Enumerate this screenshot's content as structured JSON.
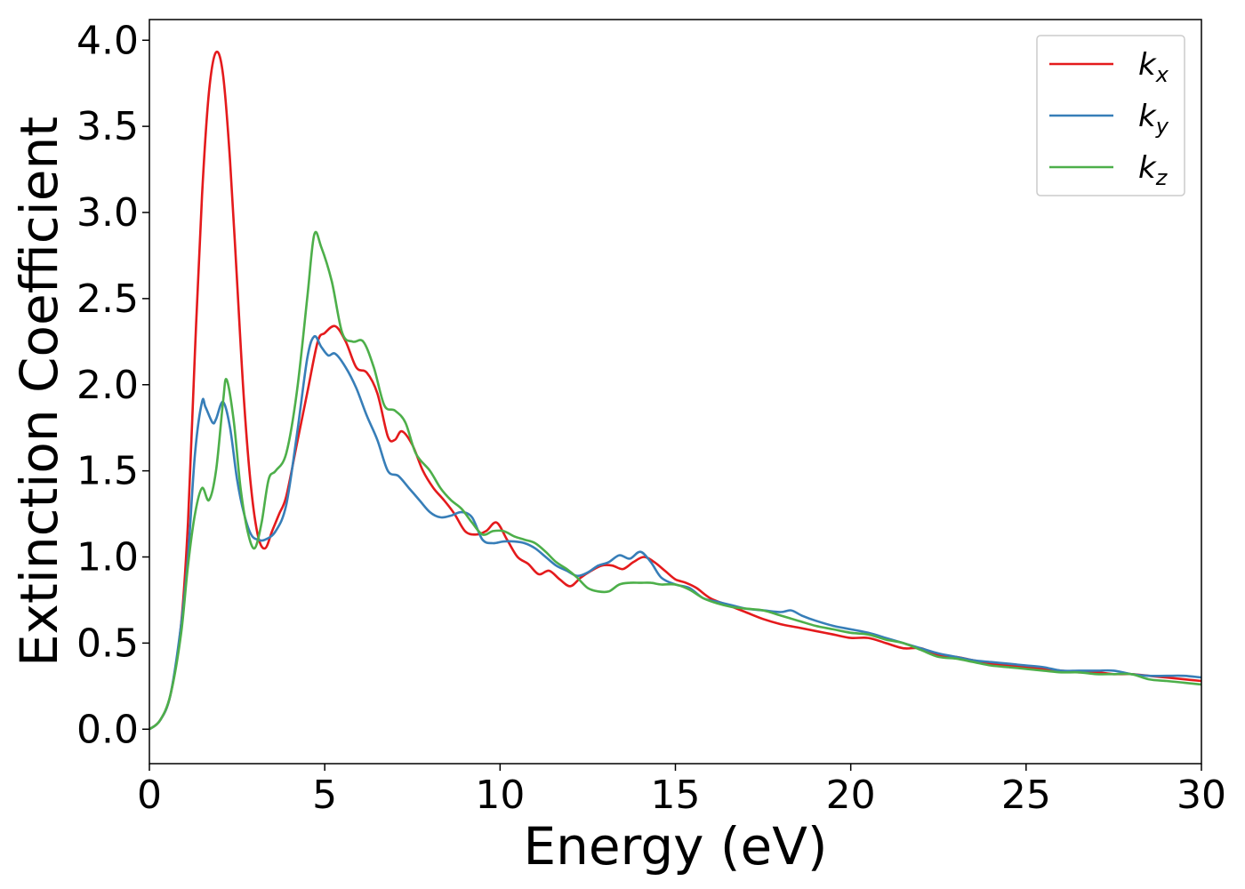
{
  "chart_data": {
    "type": "line",
    "title": "",
    "xlabel": "Energy (eV)",
    "ylabel": "Extinction Coefficient",
    "xlim": [
      0,
      30
    ],
    "ylim": [
      -0.2,
      4.12
    ],
    "x_ticks": [
      0,
      5,
      10,
      15,
      20,
      25,
      30
    ],
    "x_tick_labels": [
      "0",
      "5",
      "10",
      "15",
      "20",
      "25",
      "30"
    ],
    "y_ticks": [
      0,
      0.5,
      1,
      1.5,
      2,
      2.5,
      3,
      3.5,
      4
    ],
    "y_tick_labels": [
      "0.0",
      "0.5",
      "1.0",
      "1.5",
      "2.0",
      "2.5",
      "3.0",
      "3.5",
      "4.0"
    ],
    "grid": false,
    "legend_position": "top-right",
    "series": [
      {
        "name": "k",
        "subscript": "x",
        "color": "#e41a1c",
        "points": [
          [
            0,
            0
          ],
          [
            0.3,
            0.05
          ],
          [
            0.6,
            0.2
          ],
          [
            0.9,
            0.6
          ],
          [
            1.1,
            1.2
          ],
          [
            1.3,
            2.2
          ],
          [
            1.5,
            3.1
          ],
          [
            1.7,
            3.7
          ],
          [
            1.9,
            3.93
          ],
          [
            2.1,
            3.8
          ],
          [
            2.3,
            3.3
          ],
          [
            2.5,
            2.6
          ],
          [
            2.7,
            1.9
          ],
          [
            2.9,
            1.4
          ],
          [
            3.1,
            1.12
          ],
          [
            3.3,
            1.05
          ],
          [
            3.5,
            1.15
          ],
          [
            3.7,
            1.25
          ],
          [
            3.9,
            1.35
          ],
          [
            4.2,
            1.65
          ],
          [
            4.5,
            1.95
          ],
          [
            4.8,
            2.25
          ],
          [
            5.0,
            2.3
          ],
          [
            5.3,
            2.34
          ],
          [
            5.6,
            2.25
          ],
          [
            5.9,
            2.1
          ],
          [
            6.2,
            2.07
          ],
          [
            6.5,
            1.95
          ],
          [
            6.8,
            1.7
          ],
          [
            7.0,
            1.68
          ],
          [
            7.2,
            1.73
          ],
          [
            7.5,
            1.65
          ],
          [
            7.8,
            1.5
          ],
          [
            8.1,
            1.4
          ],
          [
            8.4,
            1.33
          ],
          [
            8.7,
            1.25
          ],
          [
            9.0,
            1.15
          ],
          [
            9.3,
            1.13
          ],
          [
            9.6,
            1.15
          ],
          [
            9.9,
            1.2
          ],
          [
            10.2,
            1.1
          ],
          [
            10.5,
            1.0
          ],
          [
            10.8,
            0.96
          ],
          [
            11.1,
            0.9
          ],
          [
            11.4,
            0.92
          ],
          [
            11.7,
            0.87
          ],
          [
            12.0,
            0.83
          ],
          [
            12.3,
            0.88
          ],
          [
            12.6,
            0.92
          ],
          [
            12.9,
            0.95
          ],
          [
            13.2,
            0.95
          ],
          [
            13.5,
            0.93
          ],
          [
            13.8,
            0.97
          ],
          [
            14.1,
            1.0
          ],
          [
            14.4,
            0.97
          ],
          [
            14.7,
            0.92
          ],
          [
            15.0,
            0.87
          ],
          [
            15.3,
            0.85
          ],
          [
            15.6,
            0.82
          ],
          [
            16.0,
            0.76
          ],
          [
            16.5,
            0.72
          ],
          [
            17.0,
            0.68
          ],
          [
            17.5,
            0.64
          ],
          [
            18.0,
            0.61
          ],
          [
            18.5,
            0.59
          ],
          [
            19.0,
            0.57
          ],
          [
            19.5,
            0.55
          ],
          [
            20.0,
            0.53
          ],
          [
            20.5,
            0.53
          ],
          [
            21.0,
            0.5
          ],
          [
            21.5,
            0.47
          ],
          [
            22.0,
            0.47
          ],
          [
            22.5,
            0.43
          ],
          [
            23.0,
            0.42
          ],
          [
            23.5,
            0.4
          ],
          [
            24.0,
            0.38
          ],
          [
            24.5,
            0.37
          ],
          [
            25.0,
            0.36
          ],
          [
            25.5,
            0.35
          ],
          [
            26.0,
            0.34
          ],
          [
            26.5,
            0.33
          ],
          [
            27.0,
            0.33
          ],
          [
            27.5,
            0.32
          ],
          [
            28.0,
            0.32
          ],
          [
            28.5,
            0.31
          ],
          [
            29.0,
            0.3
          ],
          [
            29.5,
            0.29
          ],
          [
            30.0,
            0.28
          ]
        ]
      },
      {
        "name": "k",
        "subscript": "y",
        "color": "#377eb8",
        "points": [
          [
            0,
            0
          ],
          [
            0.3,
            0.05
          ],
          [
            0.6,
            0.2
          ],
          [
            0.9,
            0.6
          ],
          [
            1.1,
            1.0
          ],
          [
            1.3,
            1.6
          ],
          [
            1.5,
            1.9
          ],
          [
            1.6,
            1.87
          ],
          [
            1.8,
            1.78
          ],
          [
            1.9,
            1.8
          ],
          [
            2.1,
            1.9
          ],
          [
            2.3,
            1.75
          ],
          [
            2.5,
            1.45
          ],
          [
            2.7,
            1.25
          ],
          [
            2.9,
            1.13
          ],
          [
            3.1,
            1.1
          ],
          [
            3.3,
            1.1
          ],
          [
            3.6,
            1.15
          ],
          [
            3.9,
            1.3
          ],
          [
            4.2,
            1.7
          ],
          [
            4.5,
            2.15
          ],
          [
            4.7,
            2.28
          ],
          [
            4.9,
            2.22
          ],
          [
            5.1,
            2.17
          ],
          [
            5.3,
            2.18
          ],
          [
            5.6,
            2.1
          ],
          [
            5.9,
            1.98
          ],
          [
            6.2,
            1.82
          ],
          [
            6.5,
            1.68
          ],
          [
            6.8,
            1.5
          ],
          [
            7.1,
            1.47
          ],
          [
            7.4,
            1.4
          ],
          [
            7.7,
            1.33
          ],
          [
            8.0,
            1.26
          ],
          [
            8.3,
            1.23
          ],
          [
            8.6,
            1.24
          ],
          [
            8.9,
            1.26
          ],
          [
            9.2,
            1.23
          ],
          [
            9.5,
            1.1
          ],
          [
            9.8,
            1.08
          ],
          [
            10.1,
            1.09
          ],
          [
            10.4,
            1.09
          ],
          [
            10.7,
            1.08
          ],
          [
            11.0,
            1.05
          ],
          [
            11.3,
            1.0
          ],
          [
            11.6,
            0.95
          ],
          [
            11.9,
            0.92
          ],
          [
            12.2,
            0.89
          ],
          [
            12.5,
            0.91
          ],
          [
            12.8,
            0.95
          ],
          [
            13.1,
            0.97
          ],
          [
            13.4,
            1.01
          ],
          [
            13.7,
            0.99
          ],
          [
            14.0,
            1.03
          ],
          [
            14.3,
            0.97
          ],
          [
            14.6,
            0.88
          ],
          [
            15.0,
            0.84
          ],
          [
            15.4,
            0.82
          ],
          [
            15.8,
            0.76
          ],
          [
            16.2,
            0.74
          ],
          [
            16.6,
            0.72
          ],
          [
            17.0,
            0.7
          ],
          [
            17.5,
            0.69
          ],
          [
            18.0,
            0.68
          ],
          [
            18.3,
            0.69
          ],
          [
            18.6,
            0.66
          ],
          [
            19.0,
            0.63
          ],
          [
            19.5,
            0.6
          ],
          [
            20.0,
            0.58
          ],
          [
            20.5,
            0.56
          ],
          [
            21.0,
            0.53
          ],
          [
            21.5,
            0.5
          ],
          [
            22.0,
            0.47
          ],
          [
            22.5,
            0.44
          ],
          [
            23.0,
            0.42
          ],
          [
            23.5,
            0.4
          ],
          [
            24.0,
            0.39
          ],
          [
            24.5,
            0.38
          ],
          [
            25.0,
            0.37
          ],
          [
            25.5,
            0.36
          ],
          [
            26.0,
            0.34
          ],
          [
            26.5,
            0.34
          ],
          [
            27.0,
            0.34
          ],
          [
            27.5,
            0.34
          ],
          [
            28.0,
            0.32
          ],
          [
            28.5,
            0.31
          ],
          [
            29.0,
            0.31
          ],
          [
            29.5,
            0.31
          ],
          [
            30.0,
            0.3
          ]
        ]
      },
      {
        "name": "k",
        "subscript": "z",
        "color": "#4daf4a",
        "points": [
          [
            0,
            0
          ],
          [
            0.3,
            0.05
          ],
          [
            0.6,
            0.2
          ],
          [
            0.9,
            0.55
          ],
          [
            1.1,
            0.95
          ],
          [
            1.3,
            1.25
          ],
          [
            1.5,
            1.4
          ],
          [
            1.7,
            1.33
          ],
          [
            1.9,
            1.5
          ],
          [
            2.1,
            1.9
          ],
          [
            2.2,
            2.03
          ],
          [
            2.4,
            1.8
          ],
          [
            2.6,
            1.4
          ],
          [
            2.8,
            1.15
          ],
          [
            3.0,
            1.05
          ],
          [
            3.2,
            1.2
          ],
          [
            3.4,
            1.45
          ],
          [
            3.6,
            1.5
          ],
          [
            3.9,
            1.6
          ],
          [
            4.2,
            1.95
          ],
          [
            4.5,
            2.5
          ],
          [
            4.7,
            2.87
          ],
          [
            4.9,
            2.8
          ],
          [
            5.2,
            2.6
          ],
          [
            5.5,
            2.3
          ],
          [
            5.8,
            2.25
          ],
          [
            6.1,
            2.25
          ],
          [
            6.4,
            2.1
          ],
          [
            6.7,
            1.88
          ],
          [
            7.0,
            1.85
          ],
          [
            7.3,
            1.78
          ],
          [
            7.6,
            1.6
          ],
          [
            8.0,
            1.5
          ],
          [
            8.3,
            1.4
          ],
          [
            8.6,
            1.33
          ],
          [
            8.9,
            1.28
          ],
          [
            9.2,
            1.2
          ],
          [
            9.5,
            1.13
          ],
          [
            9.8,
            1.15
          ],
          [
            10.1,
            1.15
          ],
          [
            10.4,
            1.12
          ],
          [
            10.7,
            1.1
          ],
          [
            11.0,
            1.08
          ],
          [
            11.3,
            1.03
          ],
          [
            11.6,
            0.97
          ],
          [
            11.9,
            0.93
          ],
          [
            12.2,
            0.88
          ],
          [
            12.5,
            0.82
          ],
          [
            12.8,
            0.8
          ],
          [
            13.1,
            0.8
          ],
          [
            13.4,
            0.84
          ],
          [
            13.7,
            0.85
          ],
          [
            14.0,
            0.85
          ],
          [
            14.3,
            0.85
          ],
          [
            14.6,
            0.84
          ],
          [
            15.0,
            0.84
          ],
          [
            15.4,
            0.81
          ],
          [
            15.8,
            0.76
          ],
          [
            16.2,
            0.73
          ],
          [
            16.6,
            0.71
          ],
          [
            17.0,
            0.7
          ],
          [
            17.5,
            0.69
          ],
          [
            18.0,
            0.66
          ],
          [
            18.5,
            0.63
          ],
          [
            19.0,
            0.6
          ],
          [
            19.5,
            0.58
          ],
          [
            20.0,
            0.56
          ],
          [
            20.5,
            0.55
          ],
          [
            21.0,
            0.52
          ],
          [
            21.5,
            0.5
          ],
          [
            22.0,
            0.46
          ],
          [
            22.5,
            0.42
          ],
          [
            23.0,
            0.41
          ],
          [
            23.5,
            0.39
          ],
          [
            24.0,
            0.37
          ],
          [
            24.5,
            0.36
          ],
          [
            25.0,
            0.35
          ],
          [
            25.5,
            0.34
          ],
          [
            26.0,
            0.33
          ],
          [
            26.5,
            0.33
          ],
          [
            27.0,
            0.32
          ],
          [
            27.5,
            0.32
          ],
          [
            28.0,
            0.32
          ],
          [
            28.5,
            0.29
          ],
          [
            29.0,
            0.28
          ],
          [
            29.5,
            0.27
          ],
          [
            30.0,
            0.26
          ]
        ]
      }
    ]
  }
}
